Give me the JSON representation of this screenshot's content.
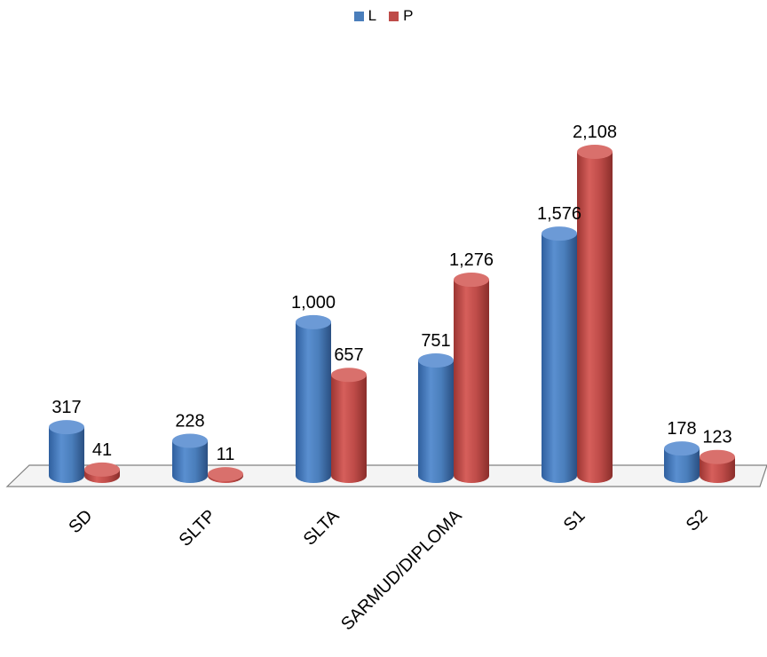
{
  "chart_data": {
    "type": "bar",
    "categories": [
      "SD",
      "SLTP",
      "SLTA",
      "SARMUD/DIPLOMA",
      "S1",
      "S2"
    ],
    "series": [
      {
        "name": "L",
        "values": [
          317,
          228,
          1000,
          751,
          1576,
          178
        ],
        "color": "#4a7ebb"
      },
      {
        "name": "P",
        "values": [
          41,
          11,
          657,
          1276,
          2108,
          123
        ],
        "color": "#be4b48"
      }
    ],
    "value_labels": {
      "L": [
        "317",
        "228",
        "1,000",
        "751",
        "1,576",
        "178"
      ],
      "P": [
        "41",
        "11",
        "657",
        "1,276",
        "2,108",
        "123"
      ]
    },
    "legend_position": "top-center",
    "grid": false,
    "ylim": [
      0,
      2108
    ],
    "style": "3d-cylinder"
  }
}
